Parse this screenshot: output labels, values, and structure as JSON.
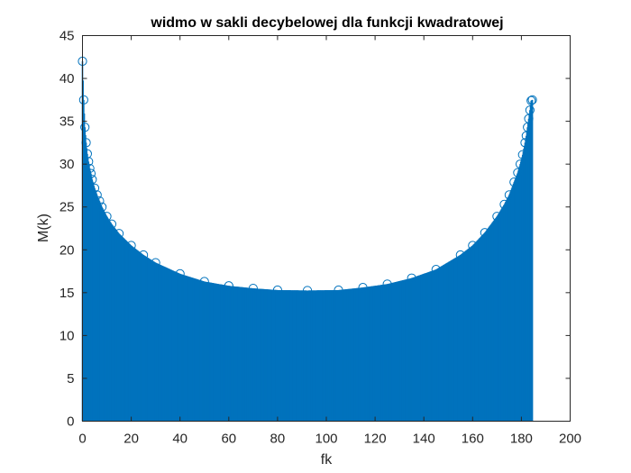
{
  "chart_data": {
    "type": "stem",
    "title": "widmo w sakli decybelowej dla funkcji kwadratowej",
    "xlabel": "fk",
    "ylabel": "M(k)",
    "xlim": [
      0,
      200
    ],
    "ylim": [
      0,
      45
    ],
    "xticks": [
      0,
      20,
      40,
      60,
      80,
      100,
      120,
      140,
      160,
      180,
      200
    ],
    "yticks": [
      0,
      5,
      10,
      15,
      20,
      25,
      30,
      35,
      40,
      45
    ],
    "grid": false,
    "series": [
      {
        "color": "#0072BD",
        "marker": "circle",
        "x": [
          0,
          0.5,
          1,
          1.5,
          2,
          2.5,
          3,
          3.5,
          4,
          5,
          6,
          7,
          8,
          10,
          12,
          15,
          20,
          25,
          30,
          40,
          50,
          60,
          70,
          80,
          92.25,
          105,
          115,
          125,
          135,
          145,
          155,
          160,
          165,
          170,
          173,
          175,
          177,
          178.5,
          179.5,
          180.5,
          181.5,
          182,
          182.5,
          183,
          183.5,
          184,
          184.5
        ],
        "values": [
          42.0,
          37.5,
          34.3,
          32.5,
          31.2,
          30.3,
          29.5,
          28.9,
          28.2,
          27.2,
          26.4,
          25.7,
          25.0,
          23.9,
          23.0,
          21.9,
          20.5,
          19.4,
          18.5,
          17.2,
          16.3,
          15.8,
          15.5,
          15.3,
          15.25,
          15.3,
          15.6,
          16.0,
          16.7,
          17.7,
          19.4,
          20.5,
          22.0,
          23.9,
          25.3,
          26.4,
          27.9,
          29.0,
          30.0,
          31.1,
          32.5,
          33.3,
          34.3,
          35.3,
          36.3,
          37.4,
          37.5
        ]
      }
    ]
  }
}
